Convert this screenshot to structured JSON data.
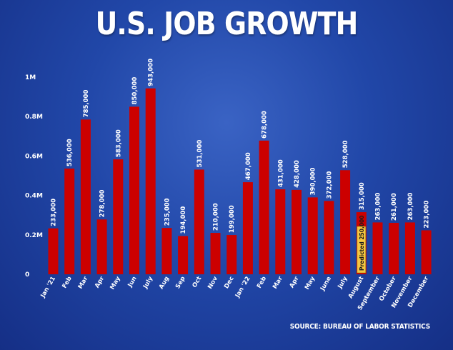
{
  "chart_data": {
    "type": "bar",
    "title": "U.S. JOB GROWTH",
    "source": "SOURCE: BUREAU OF LABOR STATISTICS",
    "ylim": [
      0,
      1000000
    ],
    "yticks": [
      {
        "value": 0,
        "label": "0"
      },
      {
        "value": 200000,
        "label": "0.2M"
      },
      {
        "value": 400000,
        "label": "0.4M"
      },
      {
        "value": 600000,
        "label": "0.6M"
      },
      {
        "value": 800000,
        "label": "0.8M"
      },
      {
        "value": 1000000,
        "label": "1M"
      }
    ],
    "grid": false,
    "categories": [
      "Jan '21",
      "Feb",
      "Mar",
      "Apr",
      "May",
      "Jun",
      "July",
      "Aug",
      "Sep",
      "Oct",
      "Nov",
      "Dec",
      "Jan '22",
      "Feb",
      "Mar",
      "Apr",
      "May",
      "June",
      "July",
      "August",
      "September",
      "October",
      "November",
      "December"
    ],
    "values": [
      233000,
      536000,
      785000,
      278000,
      583000,
      850000,
      943000,
      235000,
      194000,
      531000,
      210000,
      199000,
      467000,
      678000,
      431000,
      428000,
      390000,
      372000,
      528000,
      315000,
      263000,
      261000,
      263000,
      223000
    ],
    "value_labels": [
      "233,000",
      "536,000",
      "785,000",
      "278,000",
      "583,000",
      "850,000",
      "943,000",
      "235,000",
      "194,000",
      "531,000",
      "210,000",
      "199,000",
      "467,000",
      "678,000",
      "431,000",
      "428,000",
      "390,000",
      "372,000",
      "528,000",
      "315,000",
      "263,000",
      "261,000",
      "263,000",
      "223,000"
    ],
    "annotation": {
      "category_index": 19,
      "value": 250000,
      "text": "Predicted 250,000"
    },
    "bar_color": "#cc0000",
    "annotation_color": "#f5c542",
    "background_color": "#2147a8"
  }
}
